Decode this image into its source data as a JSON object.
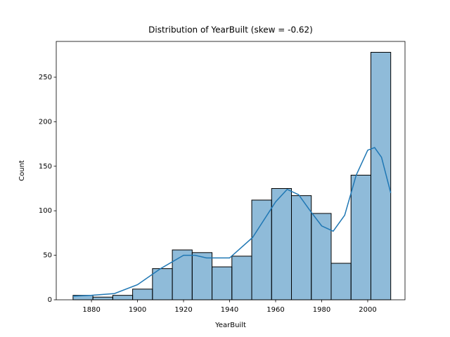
{
  "chart_data": {
    "type": "histogram",
    "title": "Distribution of YearBuilt (skew = -0.62)",
    "x_label": "YearBuilt",
    "y_label": "Count",
    "bins": [
      1872,
      1880.625,
      1889.25,
      1897.875,
      1906.5,
      1915.125,
      1923.75,
      1932.375,
      1941,
      1949.625,
      1958.25,
      1966.875,
      1975.5,
      1984.125,
      1992.75,
      2001.375,
      2010
    ],
    "counts": [
      5,
      3,
      5,
      12,
      35,
      56,
      53,
      37,
      49,
      112,
      125,
      117,
      97,
      41,
      140,
      278
    ],
    "color": "#1f77b4",
    "kde": {
      "x": [
        1872,
        1880,
        1890,
        1900,
        1910,
        1920,
        1925,
        1930,
        1940,
        1950,
        1960,
        1965,
        1970,
        1975,
        1980,
        1985,
        1990,
        1995,
        2000,
        2003,
        2006,
        2010
      ],
      "values": [
        4,
        5,
        7,
        17,
        35,
        50,
        50,
        47,
        47,
        70,
        110,
        124,
        118,
        100,
        83,
        77,
        95,
        140,
        168,
        171,
        160,
        120
      ],
      "color": "#1f77b4"
    },
    "xlim": [
      1864.7,
      2016.2
    ],
    "ylim": [
      0,
      290.2
    ],
    "xticks": [
      1880,
      1900,
      1920,
      1940,
      1960,
      1980,
      2000
    ],
    "yticks": [
      0,
      50,
      100,
      150,
      200,
      250
    ]
  }
}
